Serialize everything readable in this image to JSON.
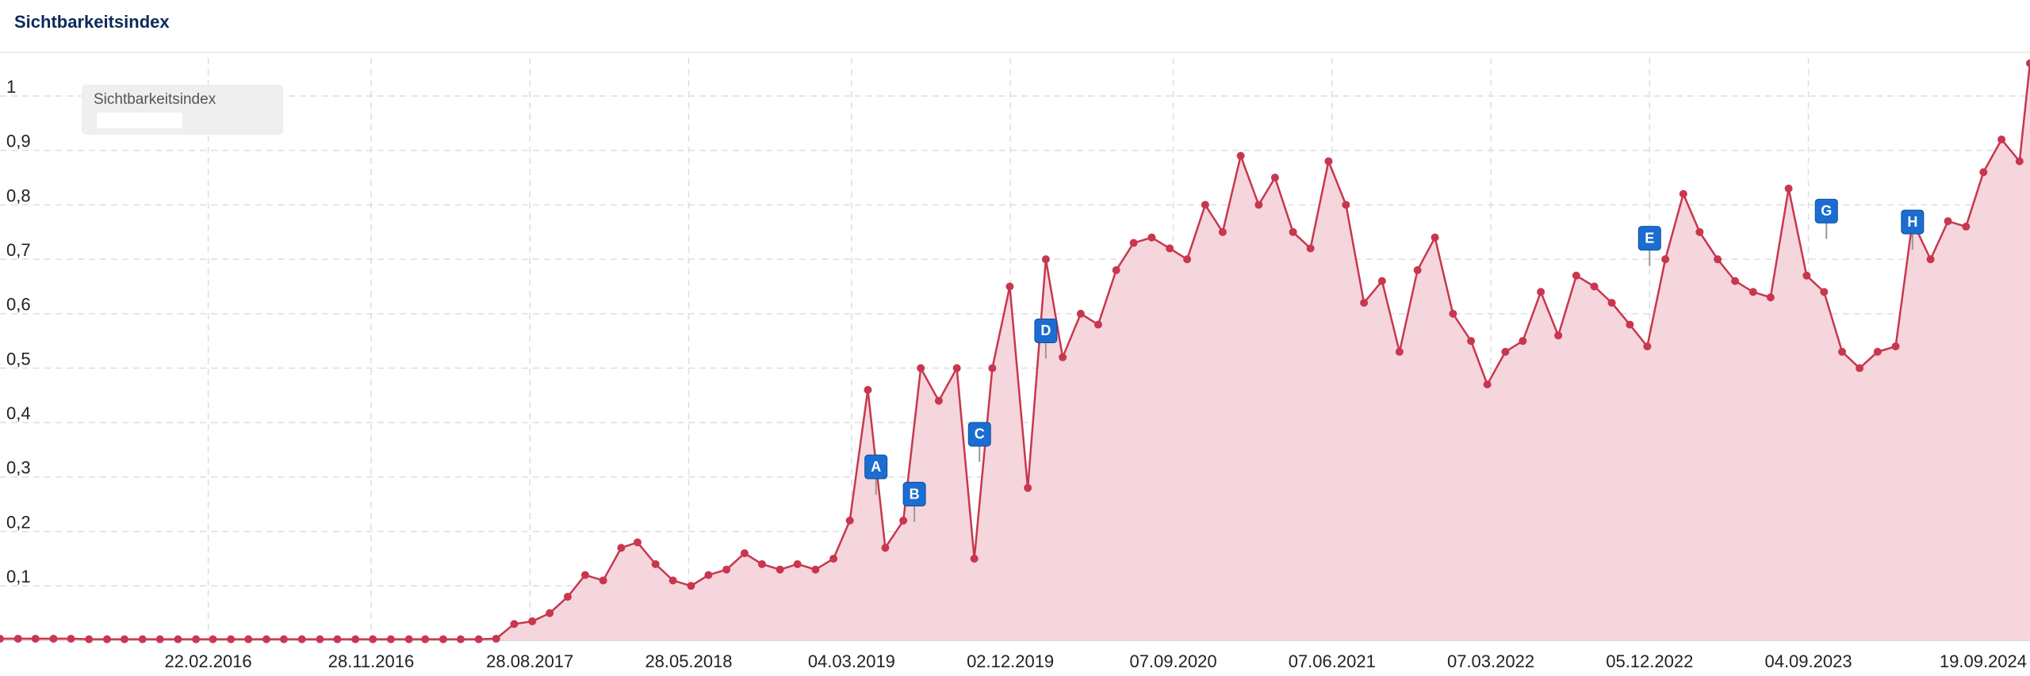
{
  "chart_data": {
    "type": "area",
    "title": "Sichtbarkeitsindex",
    "x": [
      "01.03.2015",
      "01.04.2015",
      "01.05.2015",
      "01.06.2015",
      "01.07.2015",
      "01.08.2015",
      "01.09.2015",
      "01.10.2015",
      "01.11.2015",
      "01.12.2015",
      "01.01.2016",
      "01.02.2016",
      "01.03.2016",
      "01.04.2016",
      "01.05.2016",
      "01.06.2016",
      "01.07.2016",
      "01.08.2016",
      "01.09.2016",
      "01.10.2016",
      "01.11.2016",
      "01.12.2016",
      "01.01.2017",
      "01.02.2017",
      "01.03.2017",
      "01.04.2017",
      "01.05.2017",
      "01.06.2017",
      "01.07.2017",
      "01.08.2017",
      "01.09.2017",
      "01.10.2017",
      "01.11.2017",
      "01.12.2017",
      "01.01.2018",
      "01.02.2018",
      "01.03.2018",
      "01.04.2018",
      "01.05.2018",
      "01.06.2018",
      "01.07.2018",
      "01.08.2018",
      "01.09.2018",
      "01.10.2018",
      "01.11.2018",
      "01.12.2018",
      "01.01.2019",
      "01.02.2019",
      "01.03.2019",
      "01.04.2019",
      "01.05.2019",
      "01.06.2019",
      "01.07.2019",
      "01.08.2019",
      "01.09.2019",
      "01.10.2019",
      "01.11.2019",
      "01.12.2019",
      "01.01.2020",
      "01.02.2020",
      "01.03.2020",
      "01.04.2020",
      "01.05.2020",
      "01.06.2020",
      "01.07.2020",
      "01.08.2020",
      "01.09.2020",
      "01.10.2020",
      "01.11.2020",
      "01.12.2020",
      "01.01.2021",
      "01.02.2021",
      "01.03.2021",
      "01.04.2021",
      "01.05.2021",
      "01.06.2021",
      "01.07.2021",
      "01.08.2021",
      "01.09.2021",
      "01.10.2021",
      "01.11.2021",
      "01.12.2021",
      "01.01.2022",
      "01.02.2022",
      "01.03.2022",
      "01.04.2022",
      "01.05.2022",
      "01.06.2022",
      "01.07.2022",
      "01.08.2022",
      "01.09.2022",
      "01.10.2022",
      "01.11.2022",
      "01.12.2022",
      "01.01.2023",
      "01.02.2023",
      "01.03.2023",
      "01.04.2023",
      "01.05.2023",
      "01.06.2023",
      "01.07.2023",
      "01.08.2023",
      "01.09.2023",
      "01.10.2023",
      "01.11.2023",
      "01.12.2023",
      "01.01.2024",
      "01.02.2024",
      "01.03.2024",
      "01.04.2024",
      "01.05.2024",
      "01.06.2024",
      "01.07.2024",
      "01.08.2024",
      "01.09.2024",
      "19.09.2024"
    ],
    "series": [
      {
        "name": "Sichtbarkeitsindex",
        "color": "#c8374e",
        "fill": "#f5d6dd",
        "values": [
          0.003,
          0.003,
          0.003,
          0.003,
          0.003,
          0.002,
          0.002,
          0.002,
          0.002,
          0.002,
          0.002,
          0.002,
          0.002,
          0.002,
          0.002,
          0.002,
          0.002,
          0.002,
          0.002,
          0.002,
          0.002,
          0.002,
          0.002,
          0.002,
          0.002,
          0.002,
          0.002,
          0.002,
          0.003,
          0.03,
          0.035,
          0.05,
          0.08,
          0.12,
          0.11,
          0.17,
          0.18,
          0.14,
          0.11,
          0.1,
          0.12,
          0.13,
          0.16,
          0.14,
          0.13,
          0.14,
          0.13,
          0.15,
          0.22,
          0.46,
          0.17,
          0.22,
          0.5,
          0.44,
          0.5,
          0.15,
          0.5,
          0.65,
          0.28,
          0.7,
          0.52,
          0.6,
          0.58,
          0.68,
          0.73,
          0.74,
          0.72,
          0.7,
          0.8,
          0.75,
          0.89,
          0.8,
          0.85,
          0.75,
          0.72,
          0.88,
          0.8,
          0.62,
          0.66,
          0.53,
          0.68,
          0.74,
          0.6,
          0.55,
          0.47,
          0.53,
          0.55,
          0.64,
          0.56,
          0.67,
          0.65,
          0.62,
          0.58,
          0.54,
          0.7,
          0.82,
          0.75,
          0.7,
          0.66,
          0.64,
          0.63,
          0.83,
          0.67,
          0.64,
          0.53,
          0.5,
          0.53,
          0.54,
          0.77,
          0.7,
          0.77,
          0.76,
          0.86,
          0.92,
          0.88,
          1.06
        ]
      }
    ],
    "xlim": [
      "01.03.2015",
      "19.09.2024"
    ],
    "xticks": [
      "22.02.2016",
      "28.11.2016",
      "28.08.2017",
      "28.05.2018",
      "04.03.2019",
      "02.12.2019",
      "07.09.2020",
      "07.06.2021",
      "07.03.2022",
      "05.12.2022",
      "04.09.2023",
      "19.09.2024"
    ],
    "ylim": [
      0,
      1.07
    ],
    "yticks": [
      {
        "value": 0.1,
        "label": "0,1"
      },
      {
        "value": 0.2,
        "label": "0,2"
      },
      {
        "value": 0.3,
        "label": "0,3"
      },
      {
        "value": 0.4,
        "label": "0,4"
      },
      {
        "value": 0.5,
        "label": "0,5"
      },
      {
        "value": 0.6,
        "label": "0,6"
      },
      {
        "value": 0.7,
        "label": "0,7"
      },
      {
        "value": 0.8,
        "label": "0,8"
      },
      {
        "value": 0.9,
        "label": "0,9"
      },
      1
    ],
    "grid": true,
    "annotations": [
      {
        "label": "A",
        "x": "15.04.2019",
        "y": 0.32
      },
      {
        "label": "B",
        "x": "20.06.2019",
        "y": 0.27
      },
      {
        "label": "C",
        "x": "10.10.2019",
        "y": 0.38
      },
      {
        "label": "D",
        "x": "01.02.2020",
        "y": 0.57
      },
      {
        "label": "E",
        "x": "05.12.2022",
        "y": 0.74
      },
      {
        "label": "G",
        "x": "05.10.2023",
        "y": 0.79
      },
      {
        "label": "H",
        "x": "01.03.2024",
        "y": 0.77
      }
    ]
  }
}
